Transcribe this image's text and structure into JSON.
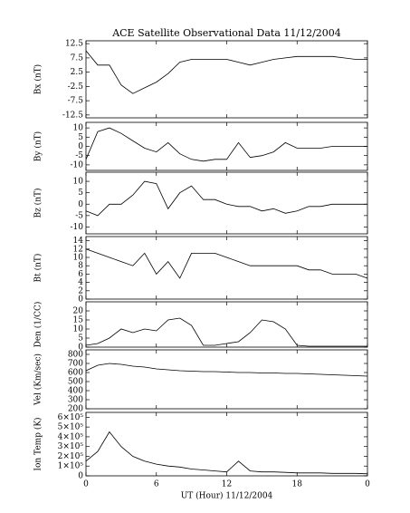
{
  "chart_data": [
    {
      "type": "line",
      "title": "ACE Satellite Observational Data   11/12/2004",
      "ylabel": "Bx (nT)",
      "xlim": [
        0,
        24
      ],
      "xticks": [
        0,
        6,
        12,
        18,
        {
          "value": 24,
          "label": "0"
        }
      ],
      "ylim": [
        -13.5,
        13.5
      ],
      "yticks": [
        12.5,
        7.5,
        2.5,
        -2.5,
        -7.5,
        -12.5
      ],
      "color": "#000000",
      "x": [
        0,
        1,
        2,
        3,
        4,
        5,
        6,
        7,
        8,
        9,
        10,
        11,
        12,
        13,
        14,
        15,
        16,
        17,
        18,
        19,
        20,
        21,
        22,
        23,
        24
      ],
      "values": [
        10,
        5,
        5,
        -2,
        -5,
        -3,
        -1,
        2,
        6,
        7,
        7,
        7,
        7,
        6,
        5,
        6,
        7,
        7.5,
        8,
        8,
        8,
        8,
        7.5,
        7,
        7
      ]
    },
    {
      "type": "line",
      "ylabel": "By (nT)",
      "xlim": [
        0,
        24
      ],
      "xticks": [
        0,
        6,
        12,
        18,
        {
          "value": 24,
          "label": "0"
        }
      ],
      "ylim": [
        -13,
        13
      ],
      "yticks": [
        10,
        5,
        0,
        -5,
        -10
      ],
      "color": "#000000",
      "x": [
        0,
        1,
        2,
        3,
        4,
        5,
        6,
        7,
        8,
        9,
        10,
        11,
        12,
        13,
        14,
        15,
        16,
        17,
        18,
        19,
        20,
        21,
        22,
        23,
        24
      ],
      "values": [
        -7,
        8,
        10,
        7,
        3,
        -1,
        -3,
        2,
        -4,
        -7,
        -8,
        -7,
        -7,
        2,
        -6,
        -5,
        -3,
        2,
        -1,
        -1,
        -1,
        0,
        0,
        0,
        0
      ]
    },
    {
      "type": "line",
      "ylabel": "Bz (nT)",
      "xlim": [
        0,
        24
      ],
      "xticks": [
        0,
        6,
        12,
        18,
        {
          "value": 24,
          "label": "0"
        }
      ],
      "ylim": [
        -13,
        14
      ],
      "yticks": [
        10,
        5,
        0,
        -5,
        -10
      ],
      "color": "#000000",
      "x": [
        0,
        1,
        2,
        3,
        4,
        5,
        6,
        7,
        8,
        9,
        10,
        11,
        12,
        13,
        14,
        15,
        16,
        17,
        18,
        19,
        20,
        21,
        22,
        23,
        24
      ],
      "values": [
        -3,
        -5,
        0,
        0,
        4,
        10,
        9,
        -2,
        5,
        8,
        2,
        2,
        0,
        -1,
        -1,
        -3,
        -2,
        -4,
        -3,
        -1,
        -1,
        0,
        0,
        0,
        0
      ]
    },
    {
      "type": "line",
      "ylabel": "Bt (nT)",
      "xlim": [
        0,
        24
      ],
      "xticks": [
        0,
        6,
        12,
        18,
        {
          "value": 24,
          "label": "0"
        }
      ],
      "ylim": [
        0,
        15
      ],
      "yticks": [
        14,
        12,
        10,
        8,
        6,
        4,
        2,
        0
      ],
      "color": "#000000",
      "x": [
        0,
        1,
        2,
        3,
        4,
        5,
        6,
        7,
        8,
        9,
        10,
        11,
        12,
        13,
        14,
        15,
        16,
        17,
        18,
        19,
        20,
        21,
        22,
        23,
        24
      ],
      "values": [
        12,
        11,
        10,
        9,
        8,
        11,
        6,
        9,
        5,
        11,
        11,
        11,
        10,
        9,
        8,
        8,
        8,
        8,
        8,
        7,
        7,
        6,
        6,
        6,
        5
      ]
    },
    {
      "type": "line",
      "ylabel": "Den (1/CC)",
      "xlim": [
        0,
        24
      ],
      "xticks": [
        0,
        6,
        12,
        18,
        {
          "value": 24,
          "label": "0"
        }
      ],
      "ylim": [
        0,
        25
      ],
      "yticks": [
        20,
        15,
        10,
        5,
        0
      ],
      "color": "#000000",
      "x": [
        0,
        1,
        2,
        3,
        4,
        5,
        6,
        7,
        8,
        9,
        10,
        11,
        12,
        13,
        14,
        15,
        16,
        17,
        18,
        19,
        20,
        21,
        22,
        23,
        24
      ],
      "values": [
        1,
        2,
        5,
        10,
        8,
        10,
        9,
        15,
        16,
        12,
        1,
        1,
        2,
        3,
        8,
        15,
        14,
        10,
        1,
        0.5,
        0.5,
        0.5,
        0.5,
        0.5,
        0.5
      ]
    },
    {
      "type": "line",
      "ylabel": "Vel (Km/sec)",
      "xlim": [
        0,
        24
      ],
      "xticks": [
        0,
        6,
        12,
        18,
        {
          "value": 24,
          "label": "0"
        }
      ],
      "ylim": [
        200,
        850
      ],
      "yticks": [
        800,
        700,
        600,
        500,
        400,
        300,
        200
      ],
      "color": "#000000",
      "x": [
        0,
        1,
        2,
        3,
        4,
        5,
        6,
        7,
        8,
        9,
        10,
        11,
        12,
        13,
        14,
        15,
        16,
        17,
        18,
        19,
        20,
        21,
        22,
        23,
        24
      ],
      "values": [
        620,
        680,
        700,
        690,
        670,
        660,
        640,
        630,
        620,
        615,
        610,
        610,
        605,
        600,
        600,
        595,
        595,
        590,
        590,
        585,
        580,
        575,
        570,
        565,
        560
      ]
    },
    {
      "type": "line",
      "ylabel": "Ion Temp (K)",
      "xlabel": "UT (Hour)  11/12/2004",
      "xlim": [
        0,
        24
      ],
      "xticks": [
        0,
        6,
        12,
        18,
        {
          "value": 24,
          "label": "0"
        }
      ],
      "ylim": [
        0,
        650000
      ],
      "yticks": [
        {
          "value": 600000,
          "label": "6×10⁵"
        },
        {
          "value": 500000,
          "label": "5×10⁵"
        },
        {
          "value": 400000,
          "label": "4×10⁵"
        },
        {
          "value": 300000,
          "label": "3×10⁵"
        },
        {
          "value": 200000,
          "label": "2×10⁵"
        },
        {
          "value": 100000,
          "label": "1×10⁵"
        },
        0
      ],
      "color": "#000000",
      "x": [
        0,
        1,
        2,
        3,
        4,
        5,
        6,
        7,
        8,
        9,
        10,
        11,
        12,
        13,
        14,
        15,
        16,
        17,
        18,
        19,
        20,
        21,
        22,
        23,
        24
      ],
      "values": [
        150000,
        250000,
        450000,
        300000,
        200000,
        150000,
        120000,
        100000,
        90000,
        70000,
        60000,
        50000,
        40000,
        150000,
        50000,
        40000,
        40000,
        35000,
        30000,
        30000,
        30000,
        25000,
        25000,
        25000,
        20000
      ]
    }
  ]
}
